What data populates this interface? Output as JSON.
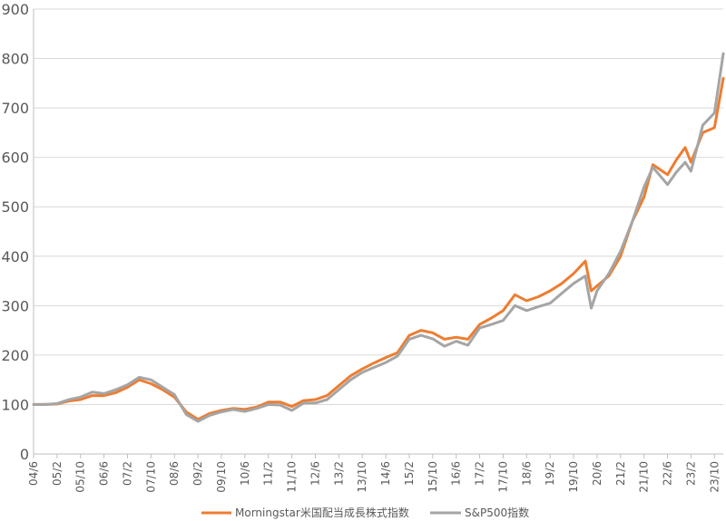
{
  "chart_data": {
    "type": "line",
    "title": "",
    "xlabel": "",
    "ylabel": "",
    "ylim": [
      0,
      900
    ],
    "yticks": [
      0,
      100,
      200,
      300,
      400,
      500,
      600,
      700,
      800,
      900
    ],
    "xtick_labels": [
      "04/6",
      "05/2",
      "05/10",
      "06/6",
      "07/2",
      "07/10",
      "08/6",
      "09/2",
      "09/10",
      "10/6",
      "11/2",
      "11/10",
      "12/6",
      "13/2",
      "13/10",
      "14/6",
      "15/2",
      "15/10",
      "16/6",
      "17/2",
      "17/10",
      "18/6",
      "19/2",
      "19/10",
      "20/6",
      "21/2",
      "21/10",
      "22/6",
      "23/2",
      "23/10"
    ],
    "x_range": [
      "2004-06",
      "2024-01"
    ],
    "grid": "horizontal",
    "legend": "bottom",
    "series": [
      {
        "name": "Morningstar米国配当成長株式指数",
        "color": "#ED7D31",
        "points": [
          [
            "2004-06",
            100
          ],
          [
            "2004-10",
            100
          ],
          [
            "2005-02",
            101
          ],
          [
            "2005-06",
            107
          ],
          [
            "2005-10",
            110
          ],
          [
            "2006-02",
            118
          ],
          [
            "2006-06",
            118
          ],
          [
            "2006-10",
            124
          ],
          [
            "2007-02",
            135
          ],
          [
            "2007-06",
            150
          ],
          [
            "2007-10",
            142
          ],
          [
            "2008-02",
            130
          ],
          [
            "2008-06",
            115
          ],
          [
            "2008-10",
            85
          ],
          [
            "2009-02",
            70
          ],
          [
            "2009-06",
            82
          ],
          [
            "2009-10",
            88
          ],
          [
            "2010-02",
            92
          ],
          [
            "2010-06",
            90
          ],
          [
            "2010-10",
            95
          ],
          [
            "2011-02",
            105
          ],
          [
            "2011-06",
            105
          ],
          [
            "2011-10",
            96
          ],
          [
            "2012-02",
            108
          ],
          [
            "2012-06",
            110
          ],
          [
            "2012-10",
            118
          ],
          [
            "2013-02",
            138
          ],
          [
            "2013-06",
            158
          ],
          [
            "2013-10",
            172
          ],
          [
            "2014-02",
            184
          ],
          [
            "2014-06",
            195
          ],
          [
            "2014-10",
            205
          ],
          [
            "2015-02",
            240
          ],
          [
            "2015-06",
            250
          ],
          [
            "2015-10",
            245
          ],
          [
            "2016-02",
            232
          ],
          [
            "2016-06",
            236
          ],
          [
            "2016-10",
            232
          ],
          [
            "2017-02",
            262
          ],
          [
            "2017-06",
            275
          ],
          [
            "2017-10",
            290
          ],
          [
            "2018-02",
            322
          ],
          [
            "2018-06",
            310
          ],
          [
            "2018-10",
            318
          ],
          [
            "2019-02",
            330
          ],
          [
            "2019-06",
            345
          ],
          [
            "2019-10",
            365
          ],
          [
            "2020-02",
            390
          ],
          [
            "2020-04",
            330
          ],
          [
            "2020-06",
            340
          ],
          [
            "2020-10",
            360
          ],
          [
            "2021-02",
            400
          ],
          [
            "2021-06",
            470
          ],
          [
            "2021-10",
            520
          ],
          [
            "2022-01",
            585
          ],
          [
            "2022-06",
            565
          ],
          [
            "2022-09",
            595
          ],
          [
            "2022-12",
            620
          ],
          [
            "2023-02",
            590
          ],
          [
            "2023-06",
            650
          ],
          [
            "2023-10",
            660
          ],
          [
            "2024-01",
            760
          ]
        ]
      },
      {
        "name": "S&P500指数",
        "color": "#A5A5A5",
        "points": [
          [
            "2004-06",
            100
          ],
          [
            "2004-10",
            100
          ],
          [
            "2005-02",
            102
          ],
          [
            "2005-06",
            110
          ],
          [
            "2005-10",
            115
          ],
          [
            "2006-02",
            125
          ],
          [
            "2006-06",
            122
          ],
          [
            "2006-10",
            130
          ],
          [
            "2007-02",
            140
          ],
          [
            "2007-06",
            155
          ],
          [
            "2007-10",
            150
          ],
          [
            "2008-02",
            135
          ],
          [
            "2008-06",
            120
          ],
          [
            "2008-10",
            80
          ],
          [
            "2009-02",
            66
          ],
          [
            "2009-06",
            78
          ],
          [
            "2009-10",
            85
          ],
          [
            "2010-02",
            90
          ],
          [
            "2010-06",
            86
          ],
          [
            "2010-10",
            92
          ],
          [
            "2011-02",
            100
          ],
          [
            "2011-06",
            99
          ],
          [
            "2011-10",
            88
          ],
          [
            "2012-02",
            103
          ],
          [
            "2012-06",
            103
          ],
          [
            "2012-10",
            110
          ],
          [
            "2013-02",
            130
          ],
          [
            "2013-06",
            150
          ],
          [
            "2013-10",
            165
          ],
          [
            "2014-02",
            175
          ],
          [
            "2014-06",
            185
          ],
          [
            "2014-10",
            198
          ],
          [
            "2015-02",
            232
          ],
          [
            "2015-06",
            240
          ],
          [
            "2015-10",
            233
          ],
          [
            "2016-02",
            218
          ],
          [
            "2016-06",
            228
          ],
          [
            "2016-10",
            220
          ],
          [
            "2017-02",
            255
          ],
          [
            "2017-06",
            262
          ],
          [
            "2017-10",
            270
          ],
          [
            "2018-02",
            300
          ],
          [
            "2018-06",
            290
          ],
          [
            "2018-10",
            298
          ],
          [
            "2019-02",
            305
          ],
          [
            "2019-06",
            325
          ],
          [
            "2019-10",
            345
          ],
          [
            "2020-02",
            360
          ],
          [
            "2020-04",
            295
          ],
          [
            "2020-06",
            330
          ],
          [
            "2020-10",
            365
          ],
          [
            "2021-02",
            410
          ],
          [
            "2021-06",
            470
          ],
          [
            "2021-10",
            540
          ],
          [
            "2022-01",
            580
          ],
          [
            "2022-06",
            545
          ],
          [
            "2022-09",
            570
          ],
          [
            "2022-12",
            590
          ],
          [
            "2023-02",
            572
          ],
          [
            "2023-06",
            665
          ],
          [
            "2023-10",
            690
          ],
          [
            "2024-01",
            810
          ]
        ]
      }
    ]
  }
}
